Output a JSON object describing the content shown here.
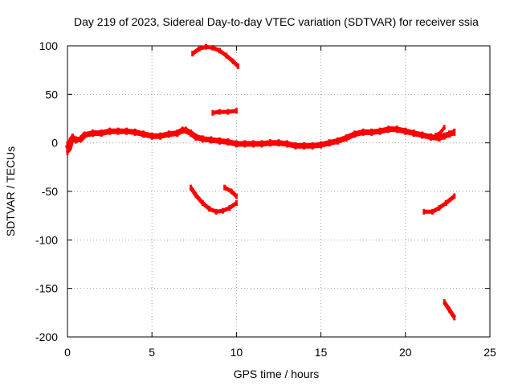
{
  "chart_data": {
    "type": "scatter",
    "title": "Day 219 of 2023, Sidereal Day-to-day VTEC variation (SDTVAR) for receiver ssia",
    "xlabel": "GPS time / hours",
    "ylabel": "SDTVAR / TECUs",
    "xlim": [
      0,
      25
    ],
    "ylim": [
      -200,
      100
    ],
    "xticks": [
      0,
      5,
      10,
      15,
      20,
      25
    ],
    "yticks": [
      -200,
      -150,
      -100,
      -50,
      0,
      50,
      100
    ],
    "xtick_labels": [
      "0",
      "5",
      "10",
      "15",
      "20",
      "25"
    ],
    "ytick_labels": [
      "-200",
      "-150",
      "-100",
      "-50",
      "0",
      "50",
      "100"
    ],
    "grid": true,
    "series_color": "#ff0000",
    "series": [
      {
        "name": "main-band",
        "thickness": 7,
        "points": [
          [
            0,
            -2
          ],
          [
            0.1,
            -6
          ],
          [
            0.2,
            1
          ],
          [
            0.3,
            5
          ],
          [
            0.5,
            3
          ],
          [
            0.8,
            4
          ],
          [
            1,
            8
          ],
          [
            1.5,
            10
          ],
          [
            2,
            10
          ],
          [
            2.5,
            12
          ],
          [
            3,
            12
          ],
          [
            3.5,
            12
          ],
          [
            4,
            11
          ],
          [
            4.5,
            9
          ],
          [
            5,
            7
          ],
          [
            5.5,
            7
          ],
          [
            6,
            9
          ],
          [
            6.5,
            10
          ],
          [
            6.8,
            13
          ],
          [
            7,
            13
          ],
          [
            7.3,
            10
          ],
          [
            7.6,
            6
          ],
          [
            8,
            4
          ],
          [
            8.5,
            3
          ],
          [
            9,
            2
          ],
          [
            9.5,
            1
          ],
          [
            10,
            -1
          ],
          [
            10.5,
            -1
          ],
          [
            11,
            -1
          ],
          [
            11.5,
            -1
          ],
          [
            12,
            0
          ],
          [
            12.5,
            0
          ],
          [
            13,
            -1
          ],
          [
            13.5,
            -3
          ],
          [
            14,
            -3
          ],
          [
            14.5,
            -3
          ],
          [
            15,
            -2
          ],
          [
            15.5,
            0
          ],
          [
            16,
            2
          ],
          [
            16.5,
            5
          ],
          [
            17,
            9
          ],
          [
            17.5,
            11
          ],
          [
            18,
            11
          ],
          [
            18.5,
            12
          ],
          [
            19,
            14
          ],
          [
            19.5,
            14
          ],
          [
            20,
            12
          ],
          [
            20.5,
            10
          ],
          [
            21,
            8
          ],
          [
            21.5,
            6
          ],
          [
            22,
            5
          ],
          [
            22.3,
            7
          ],
          [
            22.6,
            9
          ],
          [
            22.9,
            11
          ]
        ]
      },
      {
        "name": "early-spike",
        "thickness": 4,
        "points": [
          [
            0,
            -10
          ],
          [
            0.05,
            -4
          ],
          [
            0.15,
            3
          ],
          [
            0.3,
            7
          ],
          [
            0.45,
            4
          ]
        ]
      },
      {
        "name": "spike-22h",
        "thickness": 4,
        "points": [
          [
            21.8,
            8
          ],
          [
            22.1,
            11
          ],
          [
            22.3,
            16
          ]
        ]
      },
      {
        "name": "upper-arc",
        "thickness": 5,
        "points": [
          [
            7.4,
            92
          ],
          [
            7.8,
            97
          ],
          [
            8.2,
            99
          ],
          [
            8.6,
            98
          ],
          [
            9,
            95
          ],
          [
            9.4,
            90
          ],
          [
            9.8,
            84
          ],
          [
            10.1,
            79
          ]
        ]
      },
      {
        "name": "short-30",
        "thickness": 5,
        "points": [
          [
            8.6,
            31
          ],
          [
            9,
            32
          ],
          [
            9.5,
            32
          ],
          [
            10,
            33
          ]
        ]
      },
      {
        "name": "lower-arc",
        "thickness": 5,
        "points": [
          [
            7.3,
            -46
          ],
          [
            7.6,
            -54
          ],
          [
            8,
            -62
          ],
          [
            8.4,
            -68
          ],
          [
            8.8,
            -71
          ],
          [
            9.2,
            -70
          ],
          [
            9.6,
            -67
          ],
          [
            10,
            -62
          ]
        ]
      },
      {
        "name": "short-minus-50",
        "thickness": 5,
        "points": [
          [
            9.3,
            -46
          ],
          [
            9.7,
            -50
          ],
          [
            10,
            -55
          ]
        ]
      },
      {
        "name": "arc-21h",
        "thickness": 5,
        "points": [
          [
            21.1,
            -71
          ],
          [
            21.6,
            -71
          ],
          [
            22,
            -67
          ],
          [
            22.4,
            -62
          ],
          [
            22.9,
            -55
          ]
        ]
      },
      {
        "name": "tail-23h",
        "thickness": 5,
        "points": [
          [
            22.3,
            -164
          ],
          [
            22.6,
            -172
          ],
          [
            22.9,
            -180
          ]
        ]
      }
    ]
  }
}
